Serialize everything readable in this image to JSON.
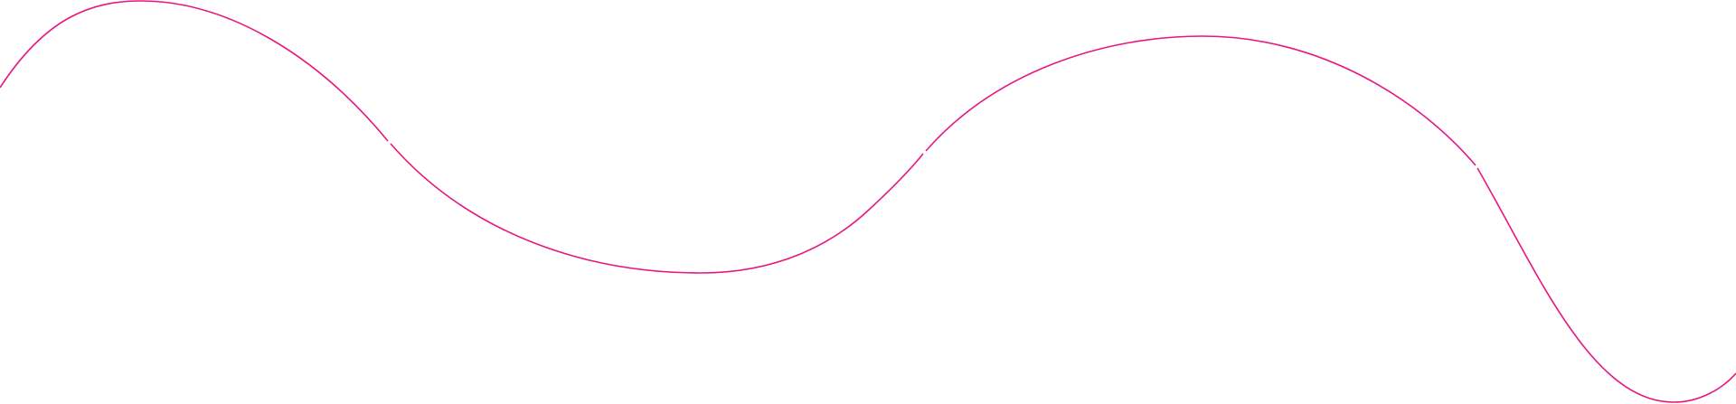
{
  "decoration": {
    "type": "wavy-line",
    "stroke_color": "#e8177f",
    "background_color": "#ffffff"
  }
}
